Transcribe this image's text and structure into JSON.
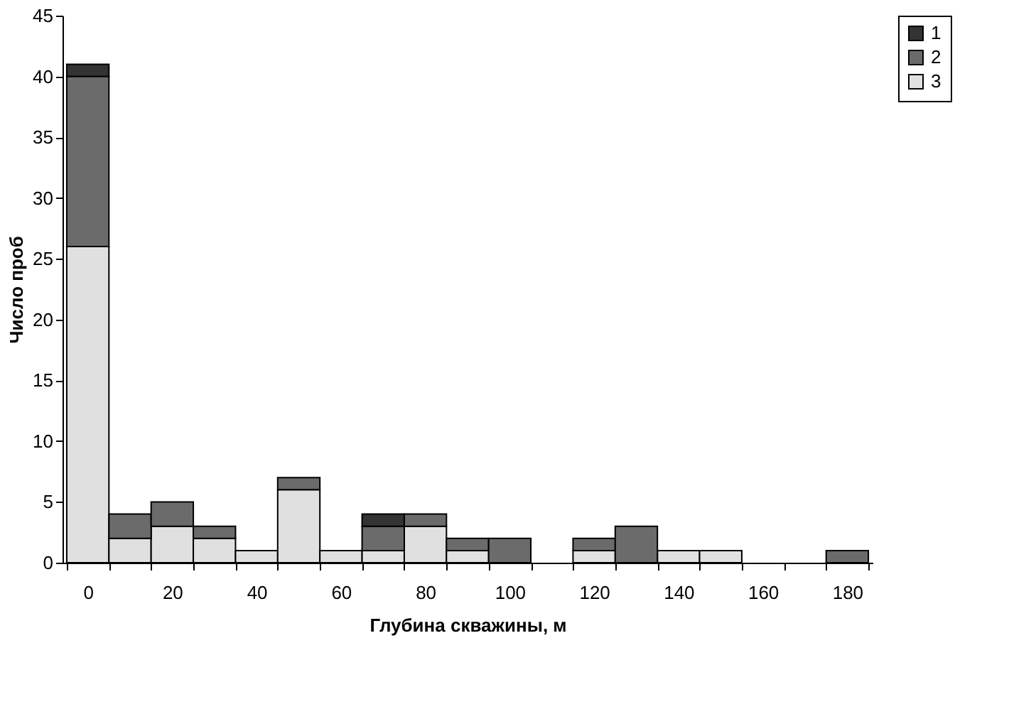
{
  "chart_data": {
    "type": "bar",
    "stacked": true,
    "xlabel": "Глубина скважины, м",
    "ylabel": "Число проб",
    "categories": [
      "0",
      null,
      "20",
      null,
      "40",
      null,
      "60",
      null,
      "80",
      null,
      "100",
      null,
      "120",
      null,
      "140",
      null,
      "160",
      null,
      "180"
    ],
    "series": [
      {
        "name": "3",
        "color": "#e0e0e0",
        "values": [
          26,
          2,
          3,
          2,
          1,
          6,
          1,
          1,
          3,
          1,
          0,
          0,
          1,
          0,
          1,
          1,
          0,
          0,
          0
        ]
      },
      {
        "name": "2",
        "color": "#6b6b6b",
        "values": [
          14,
          2,
          2,
          1,
          0,
          1,
          0,
          2,
          1,
          1,
          2,
          0,
          1,
          3,
          0,
          0,
          0,
          0,
          1
        ]
      },
      {
        "name": "1",
        "color": "#333333",
        "values": [
          1,
          0,
          0,
          0,
          0,
          0,
          0,
          1,
          0,
          0,
          0,
          0,
          0,
          0,
          0,
          0,
          0,
          0,
          0
        ]
      }
    ],
    "ylim": [
      0,
      45
    ],
    "yticks": [
      0,
      5,
      10,
      15,
      20,
      25,
      30,
      35,
      40,
      45
    ],
    "grid": false,
    "legend": "right"
  }
}
